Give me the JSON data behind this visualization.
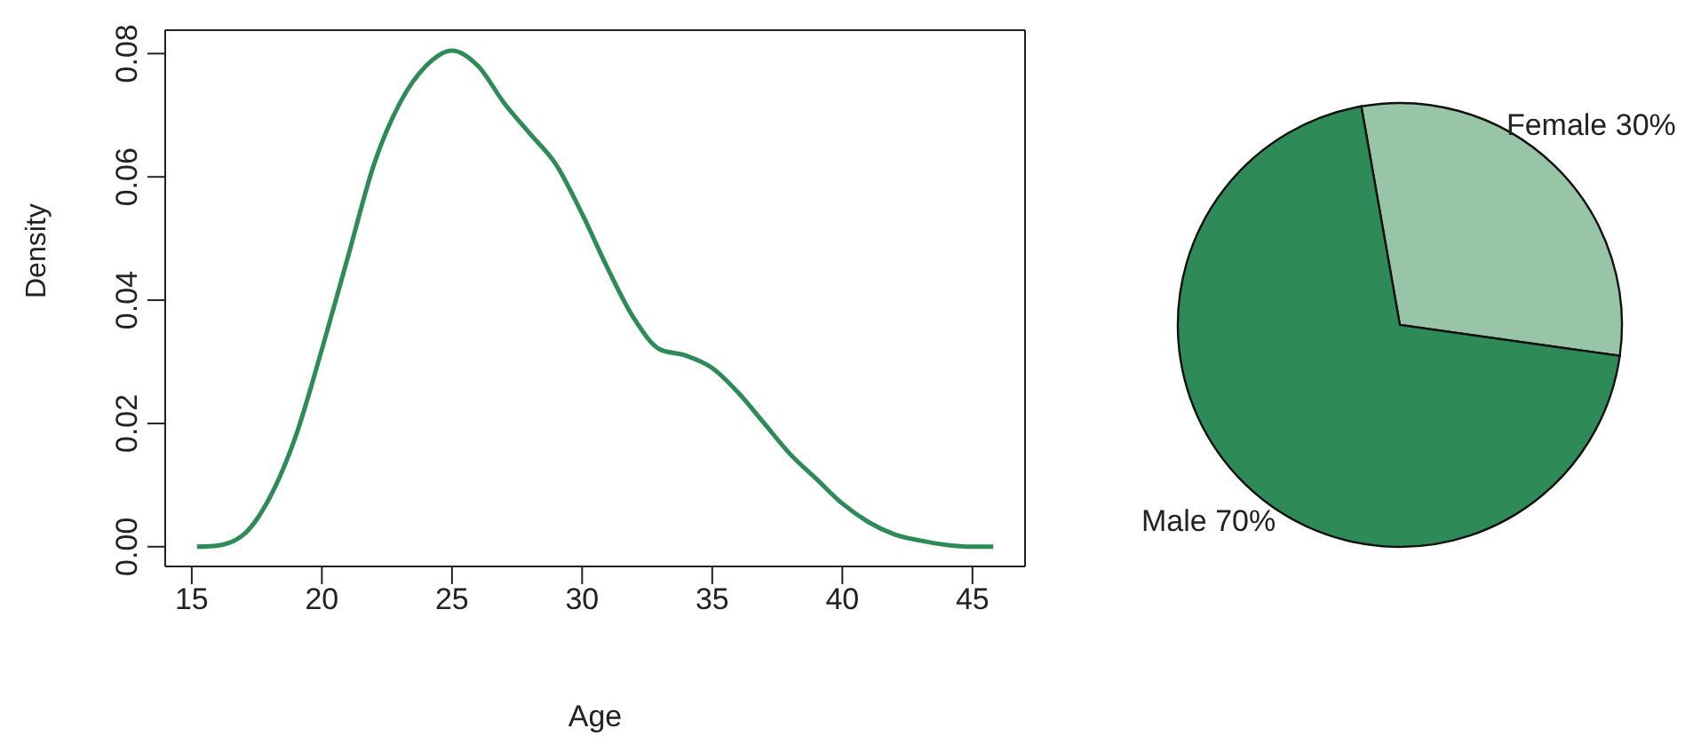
{
  "chart_data": [
    {
      "type": "line",
      "xlabel": "Age",
      "ylabel": "Density",
      "x": [
        15.2,
        16,
        17,
        18,
        19,
        20,
        21,
        22,
        23,
        24,
        25,
        26,
        27,
        28,
        29,
        30,
        31,
        32,
        33,
        34,
        35,
        36,
        37,
        38,
        39,
        40,
        41,
        42,
        43,
        44,
        45,
        45.8
      ],
      "series": [
        {
          "color": "#2e8b57",
          "values": [
            0,
            0.0002,
            0.002,
            0.008,
            0.018,
            0.032,
            0.047,
            0.062,
            0.072,
            0.078,
            0.0805,
            0.078,
            0.072,
            0.067,
            0.062,
            0.054,
            0.045,
            0.037,
            0.032,
            0.031,
            0.029,
            0.025,
            0.02,
            0.015,
            0.011,
            0.007,
            0.004,
            0.002,
            0.001,
            0.0003,
            0,
            0
          ]
        }
      ],
      "xlim": [
        13.98,
        47.02
      ],
      "xticks": [
        15,
        20,
        25,
        30,
        35,
        40,
        45
      ],
      "ylim": [
        -0.0032,
        0.0838
      ],
      "yticks": [
        {
          "value": 0,
          "label": "0.00"
        },
        {
          "value": 0.02,
          "label": "0.02"
        },
        {
          "value": 0.04,
          "label": "0.04"
        },
        {
          "value": 0.06,
          "label": "0.06"
        },
        {
          "value": 0.08,
          "label": "0.08"
        }
      ],
      "marker": "none"
    },
    {
      "type": "pie",
      "categories": [
        "Female",
        "Male"
      ],
      "values": [
        30,
        70
      ],
      "value_labels": [
        "30%",
        "70%"
      ],
      "colors": [
        "#98c4a8",
        "#2e8b57"
      ]
    }
  ]
}
